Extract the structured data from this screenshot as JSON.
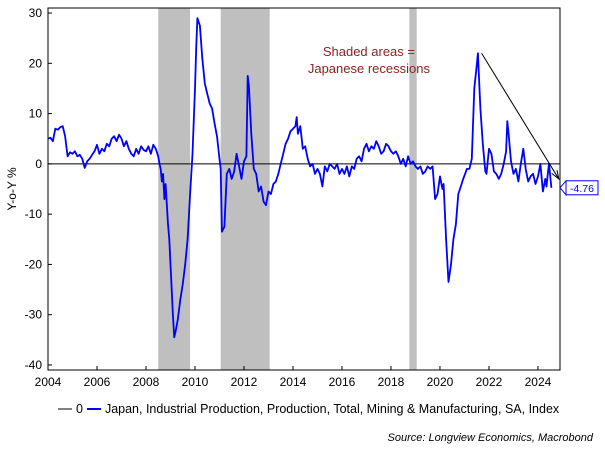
{
  "chart_data": {
    "type": "line",
    "ylabel": "Y-o-Y %",
    "xlim": [
      2004,
      2024.9
    ],
    "ylim": [
      -41,
      31
    ],
    "yticks": [
      30,
      20,
      10,
      0,
      -10,
      -20,
      -30,
      -40
    ],
    "xticks": [
      "2004",
      "2006",
      "2008",
      "2010",
      "2012",
      "2014",
      "2016",
      "2018",
      "2020",
      "2022",
      "2024"
    ],
    "grid": false,
    "legend_position": "bottom",
    "recessions": [
      [
        2008.5,
        2009.8
      ],
      [
        2011.05,
        2013.05
      ],
      [
        2018.75,
        2019.05
      ]
    ],
    "annotation": {
      "lines": [
        "Shaded areas =",
        "Japanese recessions"
      ],
      "color": "#8B2323"
    },
    "last_value_label": "-4.76",
    "trend_arrow": {
      "from": [
        2021.7,
        22
      ],
      "to": [
        2024.85,
        -3
      ]
    },
    "series": [
      {
        "name": "0",
        "color": "#808080",
        "points": [
          [
            2004,
            0
          ],
          [
            2024.9,
            0
          ]
        ]
      },
      {
        "name": "Japan, Industrial Production, Production, Total, Mining & Manufacturing, SA, Index",
        "color": "#0000FF",
        "points": [
          [
            2004.0,
            5
          ],
          [
            2004.1,
            5.2
          ],
          [
            2004.2,
            4.5
          ],
          [
            2004.3,
            7
          ],
          [
            2004.4,
            6.8
          ],
          [
            2004.5,
            7.3
          ],
          [
            2004.6,
            7.5
          ],
          [
            2004.7,
            5.5
          ],
          [
            2004.8,
            1.5
          ],
          [
            2004.9,
            2.3
          ],
          [
            2005.0,
            2
          ],
          [
            2005.1,
            2.5
          ],
          [
            2005.2,
            1.5
          ],
          [
            2005.3,
            1.8
          ],
          [
            2005.4,
            1
          ],
          [
            2005.5,
            -0.8
          ],
          [
            2005.6,
            0.5
          ],
          [
            2005.7,
            1
          ],
          [
            2005.8,
            1.8
          ],
          [
            2005.9,
            2.5
          ],
          [
            2006.0,
            3.8
          ],
          [
            2006.1,
            2
          ],
          [
            2006.2,
            3
          ],
          [
            2006.3,
            2.5
          ],
          [
            2006.4,
            4
          ],
          [
            2006.5,
            3.5
          ],
          [
            2006.6,
            5
          ],
          [
            2006.7,
            5.5
          ],
          [
            2006.8,
            4.5
          ],
          [
            2006.9,
            5.8
          ],
          [
            2007.0,
            5
          ],
          [
            2007.1,
            3.5
          ],
          [
            2007.2,
            4.5
          ],
          [
            2007.3,
            3
          ],
          [
            2007.4,
            2
          ],
          [
            2007.5,
            1.5
          ],
          [
            2007.6,
            3
          ],
          [
            2007.7,
            2
          ],
          [
            2007.8,
            3.5
          ],
          [
            2007.9,
            2.8
          ],
          [
            2008.0,
            2.5
          ],
          [
            2008.1,
            3.5
          ],
          [
            2008.2,
            2
          ],
          [
            2008.3,
            3.8
          ],
          [
            2008.4,
            3
          ],
          [
            2008.5,
            1.5
          ],
          [
            2008.55,
            0
          ],
          [
            2008.6,
            -1
          ],
          [
            2008.65,
            -3.5
          ],
          [
            2008.7,
            -2
          ],
          [
            2008.75,
            -7
          ],
          [
            2008.8,
            -4
          ],
          [
            2008.85,
            -8
          ],
          [
            2008.9,
            -12
          ],
          [
            2008.95,
            -15
          ],
          [
            2009.0,
            -20
          ],
          [
            2009.05,
            -25
          ],
          [
            2009.1,
            -30
          ],
          [
            2009.15,
            -34.5
          ],
          [
            2009.2,
            -33.5
          ],
          [
            2009.3,
            -31
          ],
          [
            2009.4,
            -27
          ],
          [
            2009.5,
            -24
          ],
          [
            2009.6,
            -20
          ],
          [
            2009.7,
            -15
          ],
          [
            2009.8,
            -6
          ],
          [
            2009.9,
            2
          ],
          [
            2010.0,
            15
          ],
          [
            2010.05,
            23
          ],
          [
            2010.1,
            29
          ],
          [
            2010.2,
            27.5
          ],
          [
            2010.3,
            21
          ],
          [
            2010.4,
            16
          ],
          [
            2010.5,
            14
          ],
          [
            2010.6,
            12
          ],
          [
            2010.7,
            11
          ],
          [
            2010.8,
            8
          ],
          [
            2010.9,
            5.5
          ],
          [
            2011.0,
            1
          ],
          [
            2011.05,
            -1
          ],
          [
            2011.1,
            -13.5
          ],
          [
            2011.2,
            -12.5
          ],
          [
            2011.3,
            -2
          ],
          [
            2011.4,
            -1
          ],
          [
            2011.5,
            -3
          ],
          [
            2011.6,
            -1.5
          ],
          [
            2011.7,
            2
          ],
          [
            2011.8,
            -0.5
          ],
          [
            2011.9,
            -3
          ],
          [
            2012.0,
            0.5
          ],
          [
            2012.1,
            1.5
          ],
          [
            2012.15,
            17.5
          ],
          [
            2012.2,
            15.5
          ],
          [
            2012.3,
            6
          ],
          [
            2012.4,
            -1
          ],
          [
            2012.5,
            -2
          ],
          [
            2012.6,
            -5.5
          ],
          [
            2012.7,
            -4.5
          ],
          [
            2012.8,
            -7.5
          ],
          [
            2012.9,
            -8.2
          ],
          [
            2013.0,
            -5.5
          ],
          [
            2013.1,
            -6
          ],
          [
            2013.2,
            -4
          ],
          [
            2013.3,
            -3.5
          ],
          [
            2013.4,
            -2
          ],
          [
            2013.5,
            0
          ],
          [
            2013.6,
            2
          ],
          [
            2013.7,
            4
          ],
          [
            2013.8,
            5
          ],
          [
            2013.9,
            6.5
          ],
          [
            2014.0,
            7
          ],
          [
            2014.1,
            7.5
          ],
          [
            2014.15,
            9.3
          ],
          [
            2014.2,
            6
          ],
          [
            2014.3,
            7.5
          ],
          [
            2014.4,
            3
          ],
          [
            2014.5,
            3.5
          ],
          [
            2014.6,
            1
          ],
          [
            2014.7,
            -0.5
          ],
          [
            2014.8,
            0
          ],
          [
            2014.9,
            -2
          ],
          [
            2015.0,
            -1
          ],
          [
            2015.1,
            -2
          ],
          [
            2015.2,
            -4.5
          ],
          [
            2015.3,
            -0.5
          ],
          [
            2015.4,
            -1.5
          ],
          [
            2015.5,
            0
          ],
          [
            2015.6,
            -0.5
          ],
          [
            2015.7,
            -1
          ],
          [
            2015.8,
            0
          ],
          [
            2015.9,
            -2
          ],
          [
            2016.0,
            -1
          ],
          [
            2016.1,
            -2
          ],
          [
            2016.2,
            -0.5
          ],
          [
            2016.3,
            -2.5
          ],
          [
            2016.4,
            -0.5
          ],
          [
            2016.5,
            -1
          ],
          [
            2016.6,
            1
          ],
          [
            2016.7,
            1.5
          ],
          [
            2016.8,
            0.5
          ],
          [
            2016.9,
            3
          ],
          [
            2017.0,
            4
          ],
          [
            2017.1,
            2.5
          ],
          [
            2017.2,
            3.5
          ],
          [
            2017.3,
            3
          ],
          [
            2017.4,
            4.5
          ],
          [
            2017.5,
            3.5
          ],
          [
            2017.6,
            2
          ],
          [
            2017.7,
            2.5
          ],
          [
            2017.8,
            4
          ],
          [
            2017.9,
            3.5
          ],
          [
            2018.0,
            2.5
          ],
          [
            2018.1,
            2
          ],
          [
            2018.2,
            2.5
          ],
          [
            2018.3,
            1.5
          ],
          [
            2018.4,
            0
          ],
          [
            2018.5,
            1
          ],
          [
            2018.6,
            -0.5
          ],
          [
            2018.7,
            1.5
          ],
          [
            2018.8,
            0
          ],
          [
            2018.9,
            0.5
          ],
          [
            2019.0,
            -0.5
          ],
          [
            2019.1,
            -1
          ],
          [
            2019.2,
            -0.5
          ],
          [
            2019.3,
            -2
          ],
          [
            2019.4,
            -1.5
          ],
          [
            2019.5,
            -0.5
          ],
          [
            2019.6,
            -1
          ],
          [
            2019.7,
            -0.5
          ],
          [
            2019.8,
            -7
          ],
          [
            2019.9,
            -6
          ],
          [
            2020.0,
            -2.5
          ],
          [
            2020.1,
            -5
          ],
          [
            2020.15,
            -4
          ],
          [
            2020.25,
            -15
          ],
          [
            2020.35,
            -23.5
          ],
          [
            2020.45,
            -20
          ],
          [
            2020.55,
            -15
          ],
          [
            2020.65,
            -12
          ],
          [
            2020.75,
            -6
          ],
          [
            2020.85,
            -4.5
          ],
          [
            2020.95,
            -3
          ],
          [
            2021.1,
            -1
          ],
          [
            2021.2,
            -1
          ],
          [
            2021.3,
            1
          ],
          [
            2021.4,
            15
          ],
          [
            2021.5,
            19.5
          ],
          [
            2021.55,
            22
          ],
          [
            2021.65,
            11
          ],
          [
            2021.75,
            4
          ],
          [
            2021.85,
            -1.5
          ],
          [
            2021.9,
            -2
          ],
          [
            2022.0,
            3
          ],
          [
            2022.1,
            2
          ],
          [
            2022.2,
            -1.5
          ],
          [
            2022.3,
            -2
          ],
          [
            2022.4,
            -3
          ],
          [
            2022.5,
            -2
          ],
          [
            2022.6,
            0
          ],
          [
            2022.7,
            2.5
          ],
          [
            2022.75,
            8.5
          ],
          [
            2022.8,
            6
          ],
          [
            2022.9,
            0.5
          ],
          [
            2023.0,
            -2
          ],
          [
            2023.1,
            -1
          ],
          [
            2023.2,
            -3.5
          ],
          [
            2023.3,
            0
          ],
          [
            2023.4,
            3
          ],
          [
            2023.5,
            -1
          ],
          [
            2023.6,
            -3.5
          ],
          [
            2023.7,
            -2.5
          ],
          [
            2023.8,
            -2
          ],
          [
            2023.9,
            -4
          ],
          [
            2024.0,
            -2.5
          ],
          [
            2024.1,
            0
          ],
          [
            2024.2,
            -5.5
          ],
          [
            2024.3,
            -3
          ],
          [
            2024.35,
            -4.5
          ],
          [
            2024.4,
            -2
          ],
          [
            2024.45,
            0
          ],
          [
            2024.55,
            -4.76
          ]
        ]
      }
    ]
  },
  "source": "Source: Longview Economics, Macrobond"
}
